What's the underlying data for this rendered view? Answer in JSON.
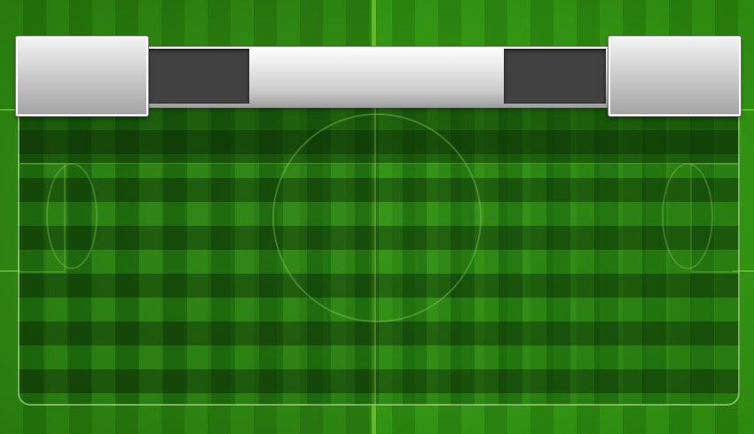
{
  "scene": "football-scoreboard",
  "colors": {
    "field_light": "#36a512",
    "field_dark": "#2c930c",
    "score_box": "#414141",
    "panel_silver": "#cfcfcf",
    "line": "#8ce63c"
  },
  "scoreboard": {
    "home_team": "",
    "away_team": "",
    "home_score": "",
    "away_score": "",
    "status": ""
  }
}
